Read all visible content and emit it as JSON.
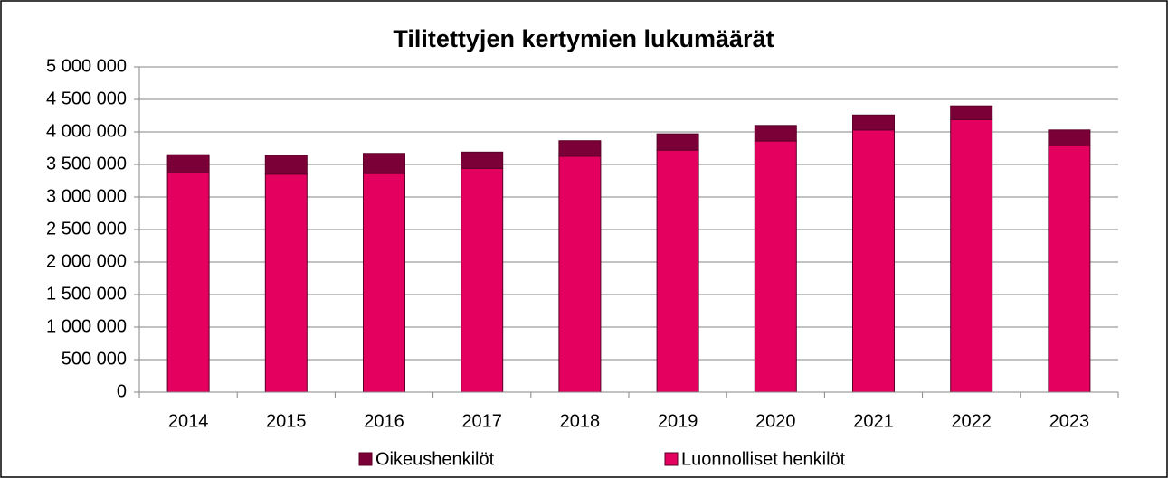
{
  "chart_data": {
    "type": "stacked_bar",
    "title": "Tilitettyjen kertymien lukumäärät",
    "categories": [
      "2014",
      "2015",
      "2016",
      "2017",
      "2018",
      "2019",
      "2020",
      "2021",
      "2022",
      "2023"
    ],
    "series": [
      {
        "name": "Luonnolliset henkilöt",
        "color": "#e4005f",
        "values": [
          3370000,
          3350000,
          3360000,
          3440000,
          3625000,
          3720000,
          3860000,
          4030000,
          4190000,
          3790000
        ]
      },
      {
        "name": "Oikeushenkilöt",
        "color": "#7a0037",
        "values": [
          280000,
          290000,
          310000,
          250000,
          240000,
          250000,
          240000,
          230000,
          210000,
          240000
        ]
      }
    ],
    "ylim": [
      0,
      5000000
    ],
    "yticks": [
      0,
      {
        "value": 500000,
        "label": "500 000"
      },
      {
        "value": 1000000,
        "label": "1 000 000"
      },
      {
        "value": 1500000,
        "label": "1 500 000"
      },
      {
        "value": 2000000,
        "label": "2 000 000"
      },
      {
        "value": 2500000,
        "label": "2 500 000"
      },
      {
        "value": 3000000,
        "label": "3 000 000"
      },
      {
        "value": 3500000,
        "label": "3 500 000"
      },
      {
        "value": 4000000,
        "label": "4 000 000"
      },
      {
        "value": 4500000,
        "label": "4 500 000"
      },
      {
        "value": 5000000,
        "label": "5 000 000"
      }
    ],
    "grid": true,
    "legend": "bottom"
  }
}
